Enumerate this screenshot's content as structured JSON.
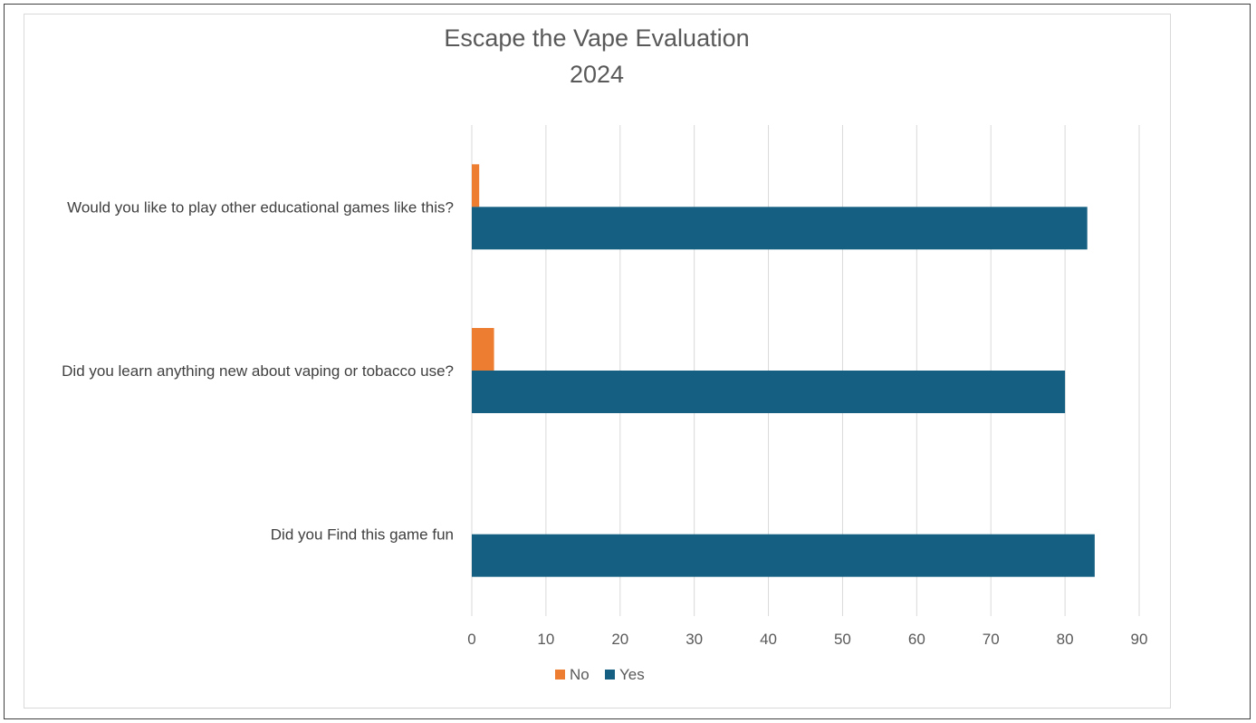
{
  "chart_data": {
    "type": "bar",
    "orientation": "horizontal",
    "title": "Escape the Vape Evaluation\n2024",
    "categories": [
      "Would you like to play other educational games like this?",
      "Did you learn anything new about vaping or tobacco use?",
      "Did you Find this game fun"
    ],
    "series": [
      {
        "name": "No",
        "color": "#ed7d31",
        "values": [
          1,
          3,
          0
        ]
      },
      {
        "name": "Yes",
        "color": "#156082",
        "values": [
          83,
          80,
          84
        ]
      }
    ],
    "xlim": [
      0,
      90
    ],
    "xticks": [
      "0",
      "10",
      "20",
      "30",
      "40",
      "50",
      "60",
      "70",
      "80",
      "90"
    ],
    "grid": true,
    "legend_position": "bottom"
  }
}
